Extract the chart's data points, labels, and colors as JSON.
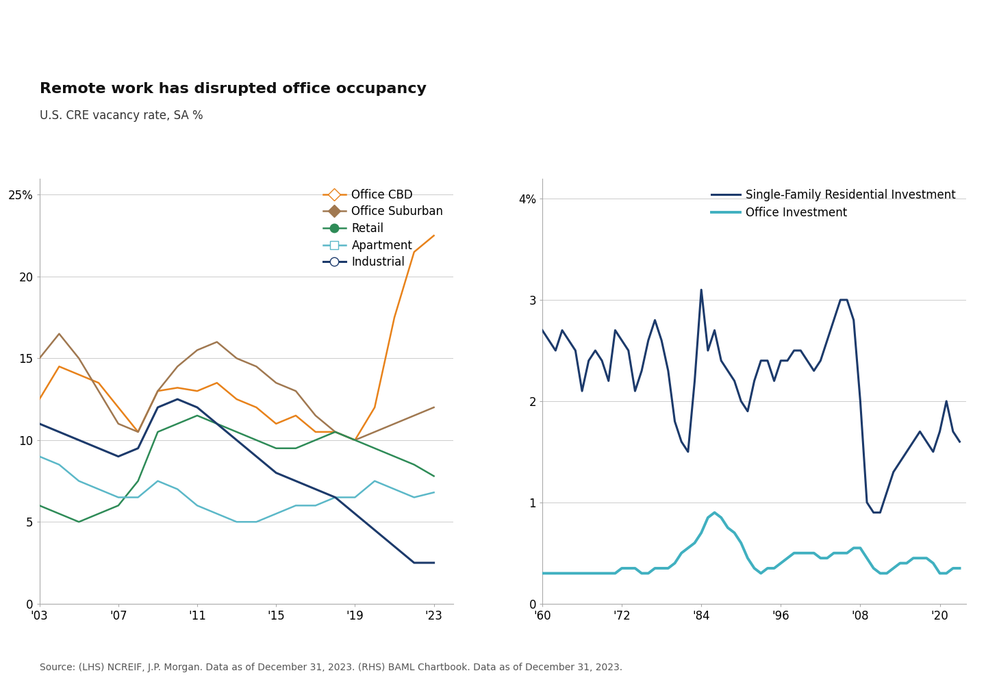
{
  "title": "Remote work has disrupted office occupancy",
  "subtitle": "U.S. CRE vacancy rate, SA %",
  "source": "Source: (LHS) NCREIF, J.P. Morgan. Data as of December 31, 2023. (RHS) BAML Chartbook. Data as of December 31, 2023.",
  "left": {
    "xlim": [
      2003,
      2024
    ],
    "ylim": [
      0,
      26
    ],
    "yticks": [
      0,
      5,
      10,
      15,
      20,
      25
    ],
    "xticks": [
      2003,
      2007,
      2011,
      2015,
      2019,
      2023
    ],
    "xticklabels": [
      "'03",
      "'07",
      "'11",
      "'15",
      "'19",
      "'23"
    ],
    "series": {
      "office_cbd": {
        "color": "#E8821A",
        "label": "Office CBD",
        "marker": "D",
        "marker_filled": false,
        "linewidth": 1.8,
        "years": [
          2003,
          2004,
          2005,
          2006,
          2007,
          2008,
          2009,
          2010,
          2011,
          2012,
          2013,
          2014,
          2015,
          2016,
          2017,
          2018,
          2019,
          2020,
          2021,
          2022,
          2023
        ],
        "values": [
          12.5,
          14.5,
          14.0,
          13.5,
          12.0,
          10.5,
          13.0,
          13.2,
          13.0,
          13.5,
          12.5,
          12.0,
          11.0,
          11.5,
          10.5,
          10.5,
          10.0,
          12.0,
          17.5,
          21.5,
          22.5
        ]
      },
      "office_suburban": {
        "color": "#A07850",
        "label": "Office Suburban",
        "marker": "D",
        "marker_filled": true,
        "linewidth": 1.8,
        "years": [
          2003,
          2004,
          2005,
          2006,
          2007,
          2008,
          2009,
          2010,
          2011,
          2012,
          2013,
          2014,
          2015,
          2016,
          2017,
          2018,
          2019,
          2020,
          2021,
          2022,
          2023
        ],
        "values": [
          15.0,
          16.5,
          15.0,
          13.0,
          11.0,
          10.5,
          13.0,
          14.5,
          15.5,
          16.0,
          15.0,
          14.5,
          13.5,
          13.0,
          11.5,
          10.5,
          10.0,
          10.5,
          11.0,
          11.5,
          12.0
        ]
      },
      "retail": {
        "color": "#2E8B57",
        "label": "Retail",
        "marker": "o",
        "marker_filled": true,
        "linewidth": 1.8,
        "years": [
          2003,
          2004,
          2005,
          2006,
          2007,
          2008,
          2009,
          2010,
          2011,
          2012,
          2013,
          2014,
          2015,
          2016,
          2017,
          2018,
          2019,
          2020,
          2021,
          2022,
          2023
        ],
        "values": [
          6.0,
          5.5,
          5.0,
          5.5,
          6.0,
          7.5,
          10.5,
          11.0,
          11.5,
          11.0,
          10.5,
          10.0,
          9.5,
          9.5,
          10.0,
          10.5,
          10.0,
          9.5,
          9.0,
          8.5,
          7.8
        ]
      },
      "apartment": {
        "color": "#5BB8C8",
        "label": "Apartment",
        "marker": "s",
        "marker_filled": false,
        "linewidth": 1.8,
        "years": [
          2003,
          2004,
          2005,
          2006,
          2007,
          2008,
          2009,
          2010,
          2011,
          2012,
          2013,
          2014,
          2015,
          2016,
          2017,
          2018,
          2019,
          2020,
          2021,
          2022,
          2023
        ],
        "values": [
          9.0,
          8.5,
          7.5,
          7.0,
          6.5,
          6.5,
          7.5,
          7.0,
          6.0,
          5.5,
          5.0,
          5.0,
          5.5,
          6.0,
          6.0,
          6.5,
          6.5,
          7.5,
          7.0,
          6.5,
          6.8
        ]
      },
      "industrial": {
        "color": "#1C3A6B",
        "label": "Industrial",
        "marker": "o",
        "marker_filled": false,
        "linewidth": 2.2,
        "years": [
          2003,
          2004,
          2005,
          2006,
          2007,
          2008,
          2009,
          2010,
          2011,
          2012,
          2013,
          2014,
          2015,
          2016,
          2017,
          2018,
          2019,
          2020,
          2021,
          2022,
          2023
        ],
        "values": [
          11.0,
          10.5,
          10.0,
          9.5,
          9.0,
          9.5,
          12.0,
          12.5,
          12.0,
          11.0,
          10.0,
          9.0,
          8.0,
          7.5,
          7.0,
          6.5,
          5.5,
          4.5,
          3.5,
          2.5,
          2.5
        ]
      }
    }
  },
  "right": {
    "xlim": [
      1960,
      2024
    ],
    "ylim": [
      0,
      4.2
    ],
    "yticks": [
      0,
      1,
      2,
      3,
      4
    ],
    "xticks": [
      1960,
      1972,
      1984,
      1996,
      2008,
      2020
    ],
    "xticklabels": [
      "'60",
      "'72",
      "'84",
      "'96",
      "'08",
      "'20"
    ],
    "series": {
      "sfr": {
        "color": "#1C3A6B",
        "label": "Single-Family Residential Investment",
        "linewidth": 2.2,
        "years": [
          1960,
          1961,
          1962,
          1963,
          1964,
          1965,
          1966,
          1967,
          1968,
          1969,
          1970,
          1971,
          1972,
          1973,
          1974,
          1975,
          1976,
          1977,
          1978,
          1979,
          1980,
          1981,
          1982,
          1983,
          1984,
          1985,
          1986,
          1987,
          1988,
          1989,
          1990,
          1991,
          1992,
          1993,
          1994,
          1995,
          1996,
          1997,
          1998,
          1999,
          2000,
          2001,
          2002,
          2003,
          2004,
          2005,
          2006,
          2007,
          2008,
          2009,
          2010,
          2011,
          2012,
          2013,
          2014,
          2015,
          2016,
          2017,
          2018,
          2019,
          2020,
          2021,
          2022,
          2023
        ],
        "values": [
          2.7,
          2.6,
          2.5,
          2.7,
          2.6,
          2.5,
          2.1,
          2.4,
          2.5,
          2.4,
          2.2,
          2.7,
          2.6,
          2.5,
          2.1,
          2.3,
          2.6,
          2.8,
          2.6,
          2.3,
          1.8,
          1.6,
          1.5,
          2.2,
          3.1,
          2.5,
          2.7,
          2.4,
          2.3,
          2.2,
          2.0,
          1.9,
          2.2,
          2.4,
          2.4,
          2.2,
          2.4,
          2.4,
          2.5,
          2.5,
          2.4,
          2.3,
          2.4,
          2.6,
          2.8,
          3.0,
          3.0,
          2.8,
          2.0,
          1.0,
          0.9,
          0.9,
          1.1,
          1.3,
          1.4,
          1.5,
          1.6,
          1.7,
          1.6,
          1.5,
          1.7,
          2.0,
          1.7,
          1.6
        ]
      },
      "office_inv": {
        "color": "#40B0C0",
        "label": "Office Investment",
        "linewidth": 2.8,
        "years": [
          1960,
          1961,
          1962,
          1963,
          1964,
          1965,
          1966,
          1967,
          1968,
          1969,
          1970,
          1971,
          1972,
          1973,
          1974,
          1975,
          1976,
          1977,
          1978,
          1979,
          1980,
          1981,
          1982,
          1983,
          1984,
          1985,
          1986,
          1987,
          1988,
          1989,
          1990,
          1991,
          1992,
          1993,
          1994,
          1995,
          1996,
          1997,
          1998,
          1999,
          2000,
          2001,
          2002,
          2003,
          2004,
          2005,
          2006,
          2007,
          2008,
          2009,
          2010,
          2011,
          2012,
          2013,
          2014,
          2015,
          2016,
          2017,
          2018,
          2019,
          2020,
          2021,
          2022,
          2023
        ],
        "values": [
          0.3,
          0.3,
          0.3,
          0.3,
          0.3,
          0.3,
          0.3,
          0.3,
          0.3,
          0.3,
          0.3,
          0.3,
          0.35,
          0.35,
          0.35,
          0.3,
          0.3,
          0.35,
          0.35,
          0.35,
          0.4,
          0.5,
          0.55,
          0.6,
          0.7,
          0.85,
          0.9,
          0.85,
          0.75,
          0.7,
          0.6,
          0.45,
          0.35,
          0.3,
          0.35,
          0.35,
          0.4,
          0.45,
          0.5,
          0.5,
          0.5,
          0.5,
          0.45,
          0.45,
          0.5,
          0.5,
          0.5,
          0.55,
          0.55,
          0.45,
          0.35,
          0.3,
          0.3,
          0.35,
          0.4,
          0.4,
          0.45,
          0.45,
          0.45,
          0.4,
          0.3,
          0.3,
          0.35,
          0.35
        ]
      }
    }
  },
  "bg_color": "#FFFFFF",
  "title_fontsize": 16,
  "subtitle_fontsize": 12,
  "axis_fontsize": 13,
  "tick_fontsize": 12,
  "source_fontsize": 10,
  "legend_fontsize": 12
}
